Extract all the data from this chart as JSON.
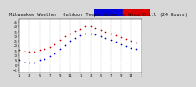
{
  "title": "Milwaukee Weather  Outdoor Temperature vs Wind Chill (24 Hours)",
  "title_fontsize": 3.8,
  "bg_color": "#d8d8d8",
  "plot_bg_color": "#ffffff",
  "grid_color": "#aaaaaa",
  "y_ticks": [
    -5,
    0,
    5,
    10,
    15,
    20,
    25,
    30,
    35,
    40,
    45
  ],
  "ylim": [
    -8,
    48
  ],
  "xlim": [
    0,
    24
  ],
  "temp_x": [
    0,
    1,
    2,
    3,
    4,
    5,
    6,
    7,
    8,
    9,
    10,
    11,
    12,
    13,
    14,
    15,
    16,
    17,
    18,
    19,
    20,
    21,
    22,
    23
  ],
  "temp_y": [
    16,
    15,
    14,
    14,
    16,
    17,
    19,
    22,
    26,
    30,
    33,
    36,
    38,
    40,
    40,
    39,
    37,
    35,
    33,
    31,
    29,
    27,
    25,
    23
  ],
  "wind_x": [
    0,
    1,
    2,
    3,
    4,
    5,
    6,
    7,
    8,
    9,
    10,
    11,
    12,
    13,
    14,
    15,
    16,
    17,
    18,
    19,
    20,
    21,
    22,
    23
  ],
  "wind_y": [
    5,
    4,
    3,
    3,
    5,
    6,
    9,
    12,
    17,
    21,
    25,
    28,
    31,
    33,
    33,
    32,
    30,
    28,
    26,
    24,
    22,
    20,
    18,
    17
  ],
  "temp_color": "#cc0000",
  "wind_color": "#0000cc",
  "legend_temp_color": "#dd0000",
  "legend_wind_color": "#0000dd",
  "dot_size": 1.5,
  "x_tick_positions": [
    0,
    2,
    4,
    6,
    8,
    10,
    12,
    14,
    16,
    18,
    20,
    22,
    24
  ],
  "x_tick_labels": [
    "1",
    "3",
    "5",
    "7",
    "9",
    "11",
    "1",
    "3",
    "5",
    "7",
    "9",
    "11",
    "1"
  ]
}
